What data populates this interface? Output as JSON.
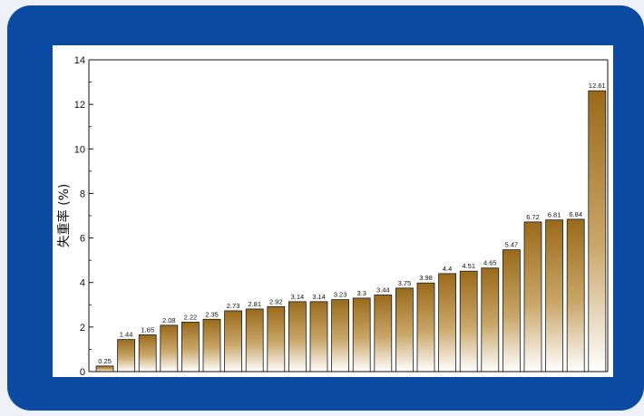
{
  "chart_data": {
    "type": "bar",
    "title": "",
    "xlabel": "",
    "ylabel": "失重率 (%)",
    "ylim": [
      0,
      14
    ],
    "yticks": [
      0,
      2,
      4,
      6,
      8,
      10,
      12,
      14
    ],
    "grid": false,
    "legend": "none",
    "values": [
      0.25,
      1.44,
      1.65,
      2.08,
      2.22,
      2.35,
      2.73,
      2.81,
      2.92,
      3.14,
      3.14,
      3.23,
      3.3,
      3.44,
      3.75,
      3.98,
      4.4,
      4.51,
      4.65,
      5.47,
      6.72,
      6.81,
      6.84,
      12.61
    ],
    "value_labels": [
      "0.25",
      "1.44",
      "1.65",
      "2.08",
      "2.22",
      "2.35",
      "2.73",
      "2.81",
      "2.92",
      "3.14",
      "3.14",
      "3.23",
      "3.3",
      "3.44",
      "3.75",
      "3.98",
      "4.4",
      "4.51",
      "4.65",
      "5.47",
      "6.72",
      "6.81",
      "6.84",
      "12.61"
    ],
    "colors": {
      "bar_top": "#9a6a1a",
      "bar_bottom": "#ffffff",
      "bar_edge": "#1a1a1a",
      "frame": "#0b4aa2"
    }
  }
}
